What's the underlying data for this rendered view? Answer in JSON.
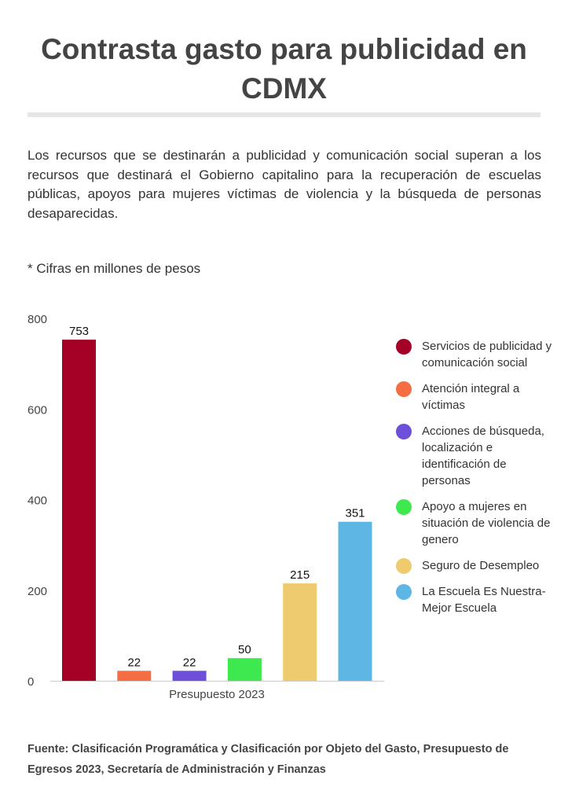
{
  "header": {
    "title": "Contrasta gasto para publicidad en CDMX"
  },
  "description": "Los recursos que se destinarán a publicidad y comunicación social superan a los recursos que destinará el Gobierno capitalino para la recuperación de escuelas públicas, apoyos para mujeres víctimas de violencia y la búsqueda de personas desaparecidas.",
  "note": "* Cifras en millones de pesos",
  "source": "Fuente:  Clasificación Programática y Clasificación por Objeto del Gasto, Presupuesto de Egresos 2023, Secretaría de Administración y Finanzas",
  "chart_data": {
    "type": "bar",
    "title": "",
    "categories": [
      "Presupuesto 2023"
    ],
    "xlabel": "",
    "ylabel": "",
    "ylim": [
      0,
      800
    ],
    "yticks": [
      0,
      200,
      400,
      600,
      800
    ],
    "grid": false,
    "legend_position": "right",
    "series": [
      {
        "name": "Servicios de publicidad y comunicación social",
        "values": [
          753
        ],
        "label": "753",
        "color": "#a50026"
      },
      {
        "name": "Atención integral a víctimas",
        "values": [
          22
        ],
        "label": "22",
        "color": "#f46d43"
      },
      {
        "name": "Acciones de búsqueda, localización e identificación de personas",
        "values": [
          22
        ],
        "label": "22",
        "color": "#6e4fd9"
      },
      {
        "name": "Apoyo a mujeres en situación de violencia de genero",
        "values": [
          50
        ],
        "label": "50",
        "color": "#3ee84f"
      },
      {
        "name": "Seguro de Desempleo",
        "values": [
          215
        ],
        "label": "215",
        "color": "#eecb6e"
      },
      {
        "name": "La Escuela Es Nuestra-Mejor Escuela",
        "values": [
          351
        ],
        "label": "351",
        "color": "#5eb6e4"
      }
    ]
  }
}
